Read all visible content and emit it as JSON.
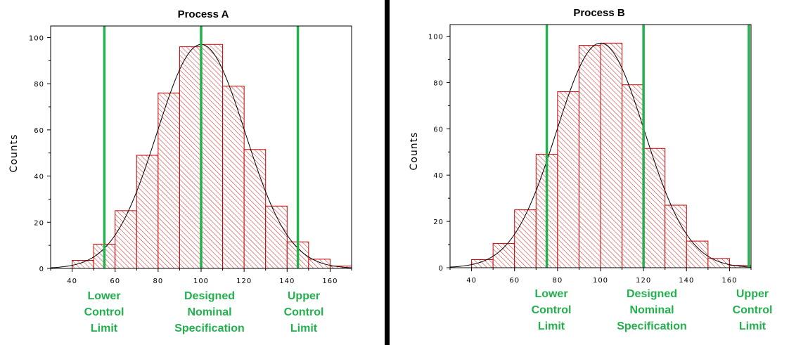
{
  "chart_data": [
    {
      "type": "bar",
      "title": "Process A",
      "ylabel": "Counts",
      "xlabel": "",
      "xlim": [
        30,
        170
      ],
      "ylim": [
        0,
        105
      ],
      "xticks": [
        40,
        60,
        80,
        100,
        120,
        140,
        160
      ],
      "yticks": [
        0,
        20,
        40,
        60,
        80,
        100
      ],
      "bins": [
        {
          "from": 40,
          "to": 50,
          "count": 3.5
        },
        {
          "from": 50,
          "to": 60,
          "count": 10.5
        },
        {
          "from": 60,
          "to": 70,
          "count": 25
        },
        {
          "from": 70,
          "to": 80,
          "count": 49
        },
        {
          "from": 80,
          "to": 90,
          "count": 76
        },
        {
          "from": 90,
          "to": 100,
          "count": 96
        },
        {
          "from": 100,
          "to": 110,
          "count": 97
        },
        {
          "from": 110,
          "to": 120,
          "count": 79
        },
        {
          "from": 120,
          "to": 130,
          "count": 51.5
        },
        {
          "from": 130,
          "to": 140,
          "count": 27
        },
        {
          "from": 140,
          "to": 150,
          "count": 11.5
        },
        {
          "from": 150,
          "to": 160,
          "count": 4
        },
        {
          "from": 160,
          "to": 170,
          "count": 1
        }
      ],
      "fit_curve": {
        "mean": 100,
        "sd": 20.5,
        "peak": 97
      },
      "vlines": [
        {
          "x": 55,
          "label": [
            "Lower",
            "Control",
            "Limit"
          ]
        },
        {
          "x": 100,
          "label": [
            "Designed",
            "Nominal",
            "Specification"
          ]
        },
        {
          "x": 145,
          "label": [
            "Upper",
            "Control",
            "Limit"
          ]
        }
      ],
      "colors": {
        "bar_edge": "#cc0000",
        "hatch": "#d44040",
        "curve": "#000000",
        "vline": "#22b14c"
      }
    },
    {
      "type": "bar",
      "title": "Process B",
      "ylabel": "Counts",
      "xlabel": "",
      "xlim": [
        30,
        170
      ],
      "ylim": [
        0,
        105
      ],
      "xticks": [
        40,
        60,
        80,
        100,
        120,
        140,
        160
      ],
      "yticks": [
        0,
        20,
        40,
        60,
        80,
        100
      ],
      "bins": [
        {
          "from": 40,
          "to": 50,
          "count": 3.5
        },
        {
          "from": 50,
          "to": 60,
          "count": 10.5
        },
        {
          "from": 60,
          "to": 70,
          "count": 25
        },
        {
          "from": 70,
          "to": 80,
          "count": 49
        },
        {
          "from": 80,
          "to": 90,
          "count": 76
        },
        {
          "from": 90,
          "to": 100,
          "count": 96
        },
        {
          "from": 100,
          "to": 110,
          "count": 97
        },
        {
          "from": 110,
          "to": 120,
          "count": 79
        },
        {
          "from": 120,
          "to": 130,
          "count": 51.5
        },
        {
          "from": 130,
          "to": 140,
          "count": 27
        },
        {
          "from": 140,
          "to": 150,
          "count": 11.5
        },
        {
          "from": 150,
          "to": 160,
          "count": 4
        },
        {
          "from": 160,
          "to": 170,
          "count": 1
        }
      ],
      "fit_curve": {
        "mean": 100,
        "sd": 20.5,
        "peak": 97
      },
      "vlines": [
        {
          "x": 75,
          "label": [
            "Lower",
            "Control",
            "Limit"
          ]
        },
        {
          "x": 120,
          "label": [
            "Designed",
            "Nominal",
            "Specification"
          ]
        },
        {
          "x": 169,
          "label": [
            "Upper",
            "Control",
            "Limit"
          ]
        }
      ],
      "colors": {
        "bar_edge": "#cc0000",
        "hatch": "#d44040",
        "curve": "#000000",
        "vline": "#22b14c"
      }
    }
  ],
  "divider_color": "#000000"
}
